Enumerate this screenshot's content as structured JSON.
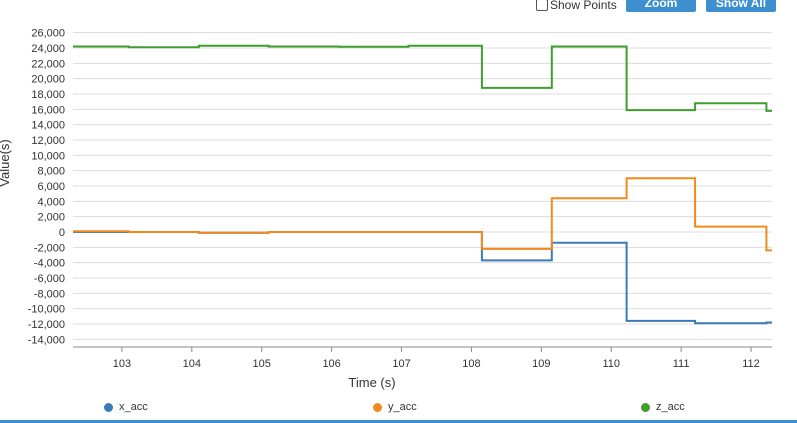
{
  "toolbar": {
    "show_points_label": "Show Points",
    "show_points_checked": false,
    "zoom_label": "Zoom",
    "show_all_label": "Show All"
  },
  "colors": {
    "x_acc": "#3a7ab8",
    "y_acc": "#f08a1c",
    "z_acc": "#3f9e2e",
    "grid": "#dcdcdc",
    "accent": "#3d8fd0"
  },
  "chart_data": {
    "type": "line",
    "xlabel": "Time (s)",
    "ylabel": "Value(s)",
    "xlim": [
      102.3,
      112.3
    ],
    "ylim": [
      -15000,
      27000
    ],
    "x_ticks": [
      103,
      104,
      105,
      106,
      107,
      108,
      109,
      110,
      111,
      112
    ],
    "x_tick_labels": [
      "103",
      "104",
      "105",
      "106",
      "107",
      "108",
      "109",
      "110",
      "111",
      "112"
    ],
    "y_ticks": [
      26000,
      24000,
      22000,
      20000,
      18000,
      16000,
      14000,
      12000,
      10000,
      8000,
      6000,
      4000,
      2000,
      0,
      -2000,
      -4000,
      -6000,
      -8000,
      -10000,
      -12000,
      -14000
    ],
    "y_tick_labels": [
      "26,000",
      "24,000",
      "22,000",
      "20,000",
      "18,000",
      "16,000",
      "14,000",
      "12,000",
      "10,000",
      "8,000",
      "6,000",
      "4,000",
      "2,000",
      "0",
      "-2,000",
      "-4,000",
      "-6,000",
      "-8,000",
      "-10,000",
      "-12,000",
      "-14,000"
    ],
    "grid": true,
    "legend": "bottom",
    "step": true,
    "series": [
      {
        "name": "x_acc",
        "color": "#3a7ab8",
        "points": [
          [
            102.3,
            0
          ],
          [
            103.1,
            0
          ],
          [
            104.1,
            -100
          ],
          [
            105.1,
            0
          ],
          [
            106.1,
            0
          ],
          [
            107.1,
            0
          ],
          [
            108.15,
            -3700
          ],
          [
            109.15,
            -1400
          ],
          [
            110.22,
            -11600
          ],
          [
            111.2,
            -11900
          ],
          [
            112.22,
            -11800
          ],
          [
            112.3,
            -11800
          ]
        ]
      },
      {
        "name": "y_acc",
        "color": "#f08a1c",
        "points": [
          [
            102.3,
            100
          ],
          [
            103.1,
            0
          ],
          [
            104.1,
            -100
          ],
          [
            105.1,
            0
          ],
          [
            106.1,
            0
          ],
          [
            107.1,
            0
          ],
          [
            108.15,
            -2200
          ],
          [
            109.15,
            4400
          ],
          [
            110.22,
            7000
          ],
          [
            111.2,
            700
          ],
          [
            112.22,
            -2400
          ],
          [
            112.3,
            -2400
          ]
        ]
      },
      {
        "name": "z_acc",
        "color": "#3f9e2e",
        "points": [
          [
            102.3,
            24200
          ],
          [
            103.1,
            24100
          ],
          [
            104.1,
            24300
          ],
          [
            105.1,
            24200
          ],
          [
            106.1,
            24150
          ],
          [
            107.1,
            24300
          ],
          [
            108.15,
            18800
          ],
          [
            109.15,
            24200
          ],
          [
            110.22,
            15900
          ],
          [
            111.2,
            16800
          ],
          [
            112.22,
            15800
          ],
          [
            112.3,
            15800
          ]
        ]
      }
    ]
  }
}
